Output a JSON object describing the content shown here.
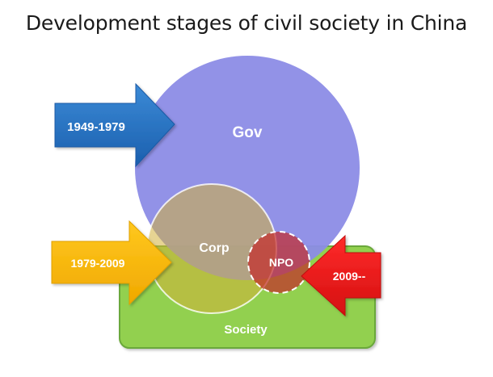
{
  "title": "Development stages of civil society in China",
  "nodes": {
    "gov": "Gov",
    "corp": "Corp",
    "npo": "NPO",
    "society": "Society"
  },
  "stages": [
    {
      "label": "1949-1979",
      "color": "#1f6fbf"
    },
    {
      "label": "1979-2009",
      "color": "#f5b400"
    },
    {
      "label": "2009--",
      "color": "#e01b1b"
    }
  ],
  "colors": {
    "gov": "#8c8ce6",
    "corp": "#c8a23a",
    "npo": "#c0302b",
    "society": "#92d050"
  }
}
